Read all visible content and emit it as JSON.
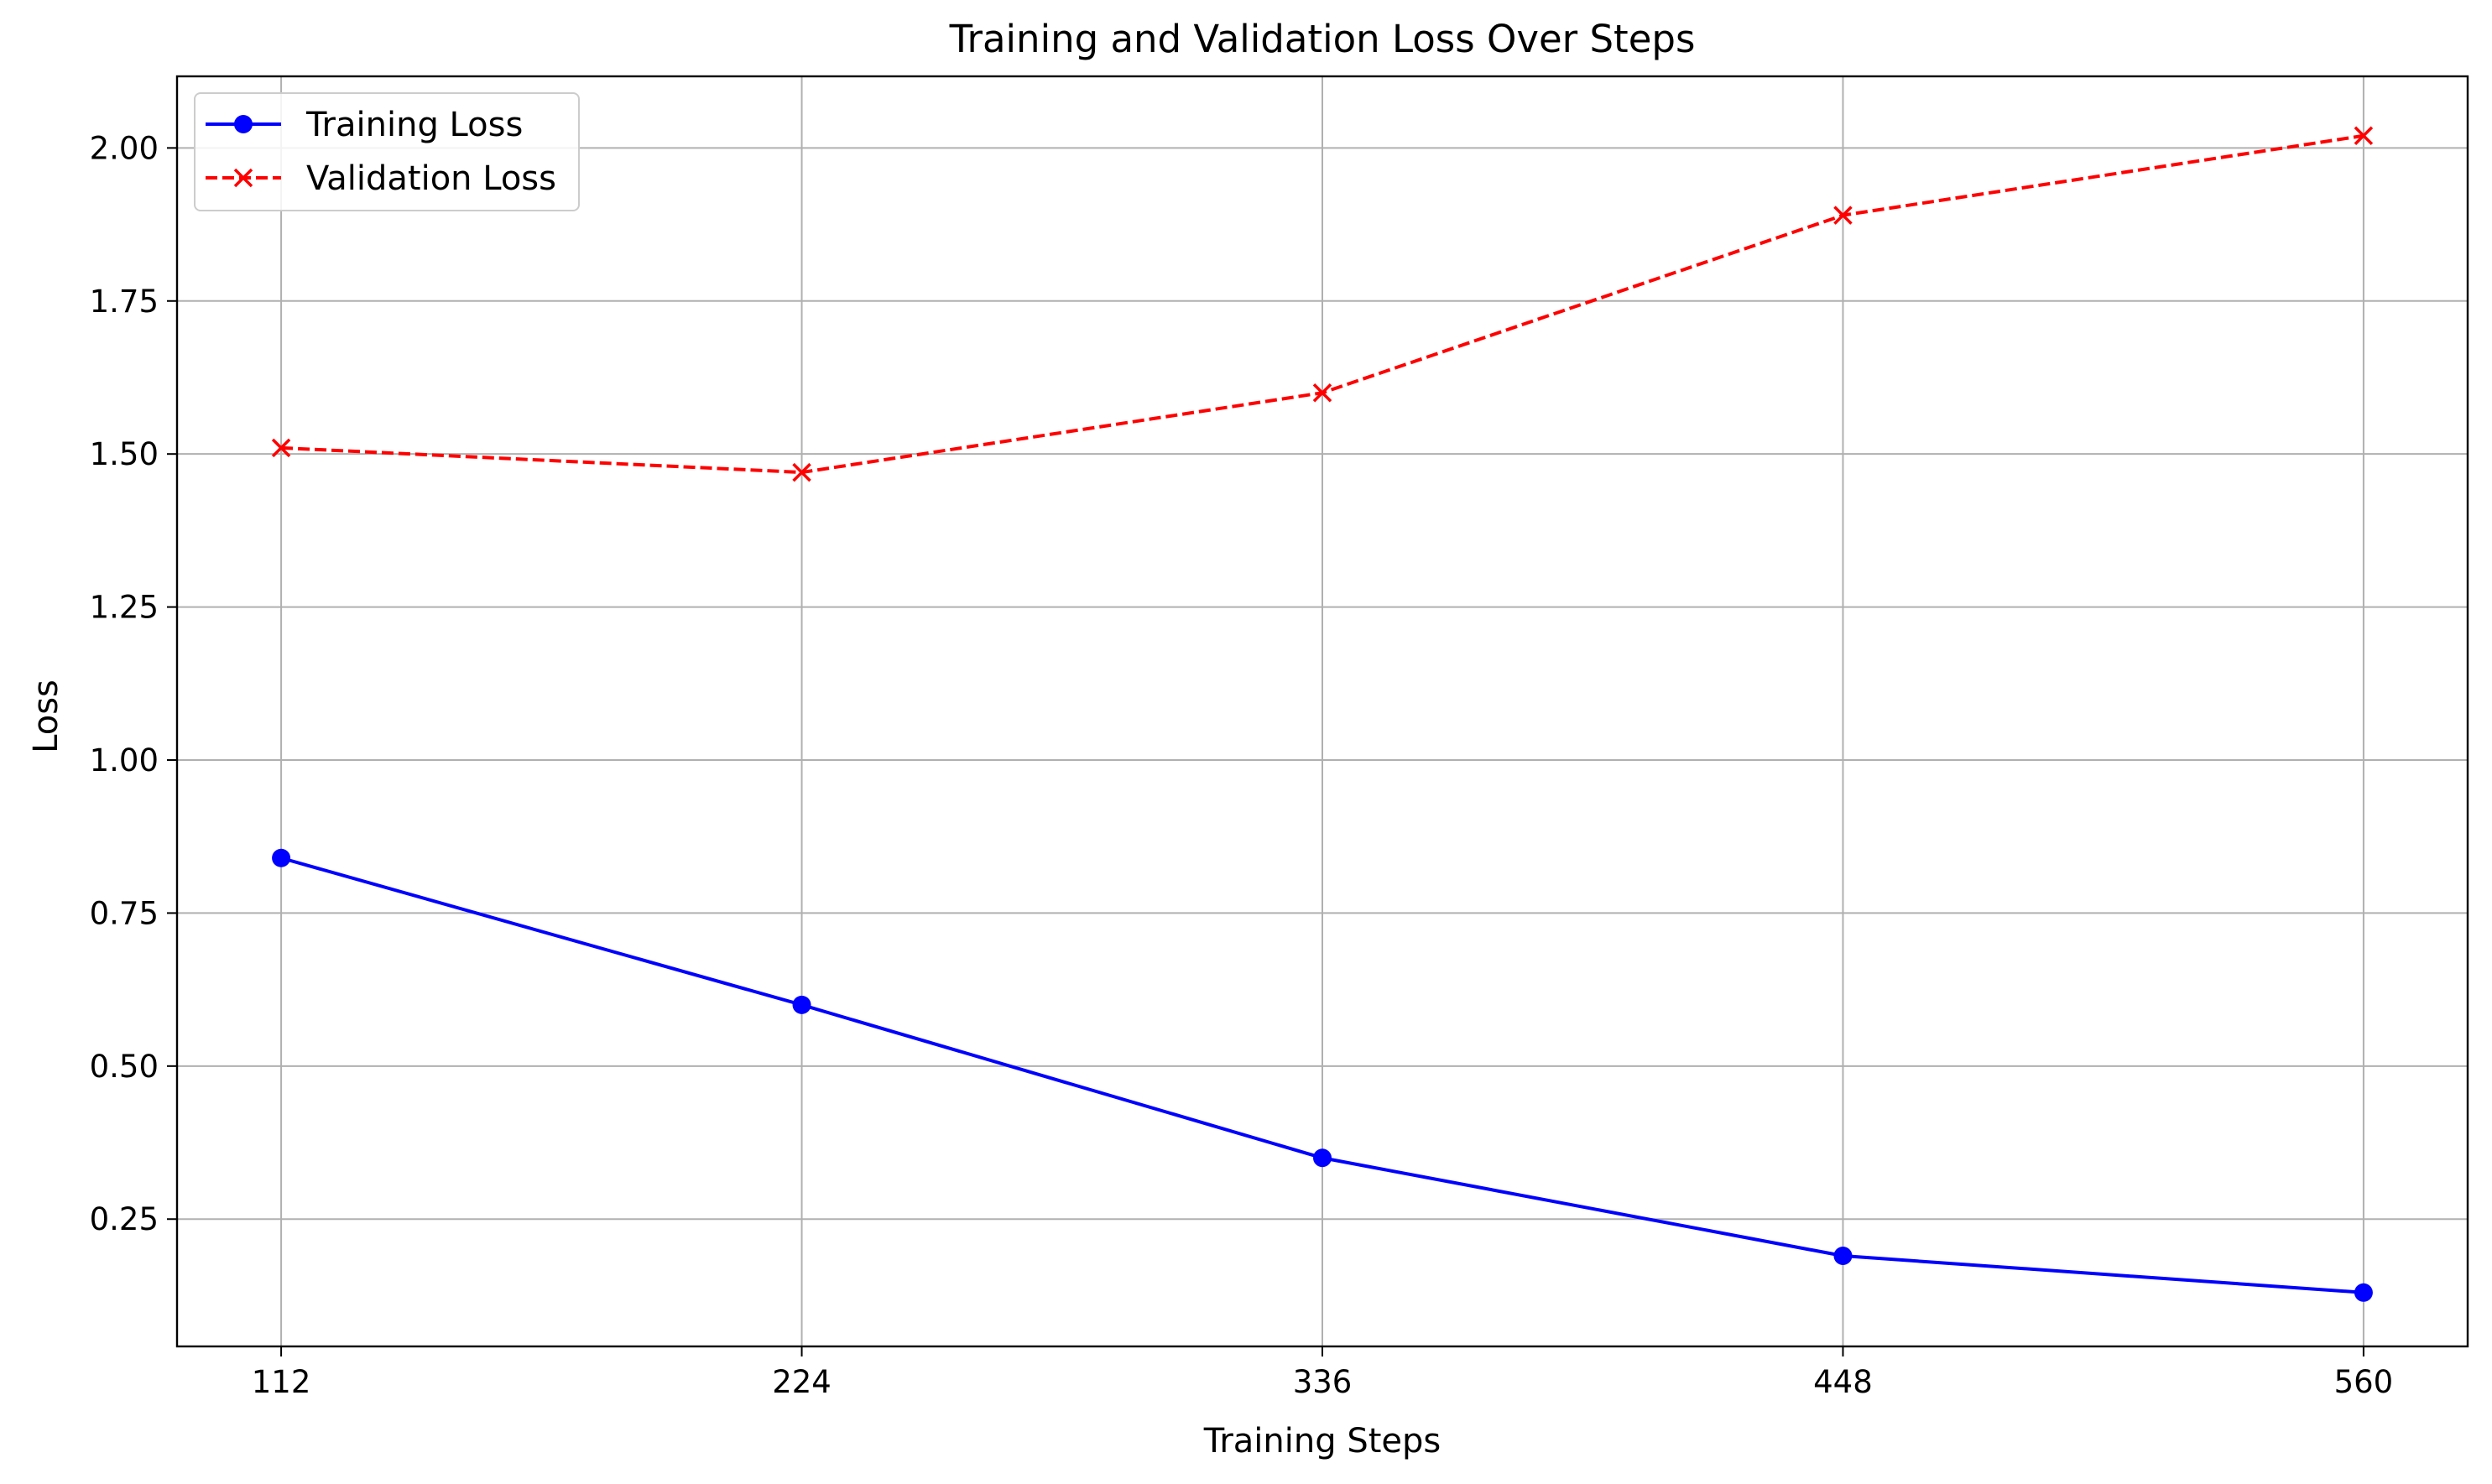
{
  "chart_data": {
    "type": "line",
    "title": "Training and Validation Loss Over Steps",
    "xlabel": "Training Steps",
    "ylabel": "Loss",
    "x": [
      112,
      224,
      336,
      448,
      560
    ],
    "xticks": [
      "112",
      "224",
      "336",
      "448",
      "560"
    ],
    "xlim": [
      89.6,
      582.4
    ],
    "yticks": [
      "0.25",
      "0.50",
      "0.75",
      "1.00",
      "1.25",
      "1.50",
      "1.75",
      "2.00"
    ],
    "ytick_values": [
      0.25,
      0.5,
      0.75,
      1.0,
      1.25,
      1.5,
      1.75,
      2.0
    ],
    "ylim": [
      0.042,
      2.117
    ],
    "grid": true,
    "legend_position": "upper-left",
    "series": [
      {
        "name": "Training Loss",
        "values": [
          0.84,
          0.6,
          0.35,
          0.19,
          0.13
        ],
        "color": "#0000ff",
        "line_style": "solid",
        "marker": "circle"
      },
      {
        "name": "Validation Loss",
        "values": [
          1.51,
          1.47,
          1.6,
          1.89,
          2.02
        ],
        "color": "#ff0000",
        "line_style": "dashed",
        "marker": "x"
      }
    ]
  }
}
